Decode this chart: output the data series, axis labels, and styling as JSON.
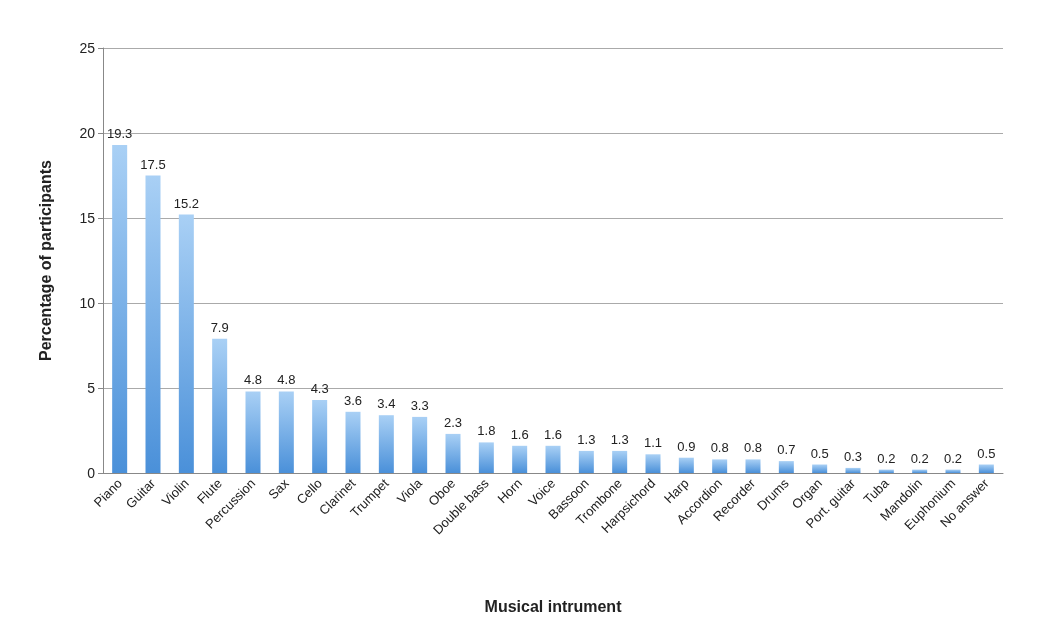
{
  "chart_data": {
    "type": "bar",
    "xlabel": "Musical intrument",
    "ylabel": "Percentage of participants",
    "categories": [
      "Piano",
      "Guitar",
      "Violin",
      "Flute",
      "Percussion",
      "Sax",
      "Cello",
      "Clarinet",
      "Trumpet",
      "Viola",
      "Oboe",
      "Double bass",
      "Horn",
      "Voice",
      "Bassoon",
      "Trombone",
      "Harpsichord",
      "Harp",
      "Accordion",
      "Recorder",
      "Drums",
      "Organ",
      "Port. guitar",
      "Tuba",
      "Mandolin",
      "Euphonium",
      "No answer"
    ],
    "values": [
      19.3,
      17.5,
      15.2,
      7.9,
      4.8,
      4.8,
      4.3,
      3.6,
      3.4,
      3.3,
      2.3,
      1.8,
      1.6,
      1.6,
      1.3,
      1.3,
      1.1,
      0.9,
      0.8,
      0.8,
      0.7,
      0.5,
      0.3,
      0.2,
      0.2,
      0.2,
      0.5
    ],
    "color": "#4a90d9",
    "ylim": [
      0,
      25
    ],
    "yticks": [
      0,
      5,
      10,
      15,
      20,
      25
    ],
    "grid": "y",
    "data_labels": true
  }
}
